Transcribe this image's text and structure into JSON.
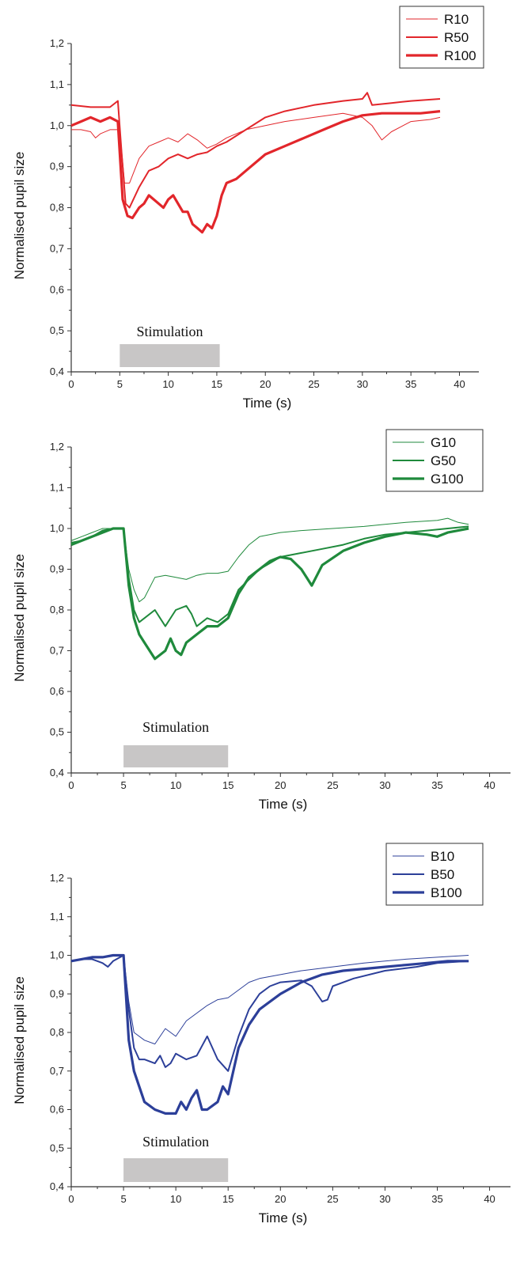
{
  "chart_data": [
    {
      "type": "line",
      "xlabel": "Time (s)",
      "ylabel": "Normalised pupil size",
      "xlim": [
        0,
        42
      ],
      "ylim": [
        0.4,
        1.2
      ],
      "xticks": [
        "0",
        "5",
        "10",
        "15",
        "20",
        "25",
        "30",
        "35",
        "40"
      ],
      "yticks": [
        "0,4",
        "0,5",
        "0,6",
        "0,7",
        "0,8",
        "0,9",
        "1,0",
        "1,1",
        "1,2"
      ],
      "legend_position": "top-right",
      "annotation": {
        "text": "Stimulation",
        "x_start": 5,
        "x_end": 15.3
      },
      "color": "#e2262b",
      "series": [
        {
          "name": "R10",
          "stroke": "thin",
          "x": [
            0,
            1,
            2,
            2.5,
            3,
            4,
            5,
            5.5,
            6,
            7,
            8,
            9,
            10,
            11,
            12,
            13,
            14,
            15,
            16,
            18,
            20,
            22,
            25,
            28,
            30,
            31,
            32,
            33,
            35,
            37,
            38
          ],
          "y": [
            0.99,
            0.99,
            0.985,
            0.97,
            0.98,
            0.99,
            0.99,
            0.86,
            0.86,
            0.92,
            0.95,
            0.96,
            0.97,
            0.96,
            0.98,
            0.965,
            0.945,
            0.955,
            0.97,
            0.99,
            1.0,
            1.01,
            1.02,
            1.03,
            1.02,
            1.0,
            0.965,
            0.985,
            1.01,
            1.015,
            1.02
          ]
        },
        {
          "name": "R50",
          "stroke": "medium",
          "x": [
            0,
            2,
            4,
            4.8,
            5.2,
            5.6,
            6,
            7,
            8,
            9,
            10,
            11,
            12,
            13,
            14,
            15,
            16,
            18,
            20,
            22,
            25,
            28,
            30,
            30.5,
            31,
            33,
            35,
            38
          ],
          "y": [
            1.05,
            1.045,
            1.045,
            1.06,
            0.93,
            0.81,
            0.8,
            0.85,
            0.89,
            0.9,
            0.92,
            0.93,
            0.92,
            0.93,
            0.935,
            0.95,
            0.96,
            0.99,
            1.02,
            1.035,
            1.05,
            1.06,
            1.065,
            1.08,
            1.05,
            1.055,
            1.06,
            1.065
          ]
        },
        {
          "name": "R100",
          "stroke": "thick",
          "x": [
            0,
            1,
            2,
            3,
            4,
            4.8,
            5.3,
            5.8,
            6.3,
            7,
            7.5,
            8,
            9,
            9.5,
            10,
            10.5,
            11,
            11.5,
            12,
            12.5,
            13,
            13.5,
            14,
            14.5,
            15,
            15.5,
            16,
            17,
            18,
            20,
            22,
            24,
            26,
            28,
            30,
            32,
            34,
            36,
            38
          ],
          "y": [
            1.0,
            1.01,
            1.02,
            1.01,
            1.02,
            1.01,
            0.82,
            0.78,
            0.775,
            0.8,
            0.81,
            0.83,
            0.81,
            0.8,
            0.82,
            0.83,
            0.81,
            0.79,
            0.79,
            0.76,
            0.75,
            0.74,
            0.76,
            0.75,
            0.78,
            0.83,
            0.86,
            0.87,
            0.89,
            0.93,
            0.95,
            0.97,
            0.99,
            1.01,
            1.025,
            1.03,
            1.03,
            1.03,
            1.035
          ]
        }
      ]
    },
    {
      "type": "line",
      "xlabel": "Time (s)",
      "ylabel": "Normalised pupil size",
      "xlim": [
        0,
        42
      ],
      "ylim": [
        0.4,
        1.2
      ],
      "xticks": [
        "0",
        "5",
        "10",
        "15",
        "20",
        "25",
        "30",
        "35",
        "40"
      ],
      "yticks": [
        "0,4",
        "0,5",
        "0,6",
        "0,7",
        "0,8",
        "0,9",
        "1,0",
        "1,1",
        "1,2"
      ],
      "legend_position": "top-right",
      "annotation": {
        "text": "Stimulation",
        "x_start": 5,
        "x_end": 15
      },
      "color": "#1f8a3c",
      "series": [
        {
          "name": "G10",
          "stroke": "thin",
          "x": [
            0,
            1,
            2,
            3,
            4,
            5,
            5.5,
            6,
            6.5,
            7,
            8,
            9,
            10,
            11,
            12,
            13,
            14,
            15,
            16,
            17,
            18,
            20,
            22,
            25,
            28,
            30,
            32,
            35,
            36,
            37,
            38
          ],
          "y": [
            0.97,
            0.98,
            0.99,
            1.0,
            1.0,
            1.0,
            0.9,
            0.85,
            0.82,
            0.83,
            0.88,
            0.885,
            0.88,
            0.875,
            0.885,
            0.89,
            0.89,
            0.895,
            0.93,
            0.96,
            0.98,
            0.99,
            0.995,
            1.0,
            1.005,
            1.01,
            1.015,
            1.02,
            1.025,
            1.015,
            1.01
          ]
        },
        {
          "name": "G50",
          "stroke": "medium",
          "x": [
            0,
            1,
            2,
            3,
            4,
            5,
            5.5,
            6,
            6.5,
            7,
            8,
            8.5,
            9,
            10,
            11,
            11.5,
            12,
            13,
            14,
            15,
            16,
            18,
            20,
            22,
            24,
            26,
            28,
            30,
            32,
            34,
            36,
            38
          ],
          "y": [
            0.965,
            0.97,
            0.98,
            0.995,
            1.0,
            1.0,
            0.88,
            0.8,
            0.77,
            0.78,
            0.8,
            0.78,
            0.76,
            0.8,
            0.81,
            0.79,
            0.76,
            0.78,
            0.77,
            0.79,
            0.85,
            0.9,
            0.93,
            0.94,
            0.95,
            0.96,
            0.975,
            0.985,
            0.99,
            0.995,
            1.0,
            1.005
          ]
        },
        {
          "name": "G100",
          "stroke": "thick",
          "x": [
            0,
            1,
            2,
            3,
            4,
            5,
            5.5,
            6,
            6.5,
            7,
            8,
            9,
            9.5,
            10,
            10.5,
            11,
            12,
            13,
            14,
            15,
            16,
            17,
            18,
            19,
            20,
            21,
            22,
            22.5,
            23,
            24,
            26,
            28,
            30,
            32,
            34,
            35,
            36,
            37,
            38
          ],
          "y": [
            0.96,
            0.97,
            0.98,
            0.99,
            1.0,
            1.0,
            0.86,
            0.78,
            0.74,
            0.72,
            0.68,
            0.7,
            0.73,
            0.7,
            0.69,
            0.72,
            0.74,
            0.76,
            0.76,
            0.78,
            0.84,
            0.88,
            0.9,
            0.92,
            0.93,
            0.925,
            0.9,
            0.88,
            0.86,
            0.91,
            0.945,
            0.965,
            0.98,
            0.99,
            0.985,
            0.98,
            0.99,
            0.995,
            1.0
          ]
        }
      ]
    },
    {
      "type": "line",
      "xlabel": "Time (s)",
      "ylabel": "Normalised pupil size",
      "xlim": [
        0,
        42
      ],
      "ylim": [
        0.4,
        1.2
      ],
      "xticks": [
        "0",
        "5",
        "10",
        "15",
        "20",
        "25",
        "30",
        "35",
        "40"
      ],
      "yticks": [
        "0,4",
        "0,5",
        "0,6",
        "0,7",
        "0,8",
        "0,9",
        "1,0",
        "1,1",
        "1,2"
      ],
      "legend_position": "top-right",
      "annotation": {
        "text": "Stimulation",
        "x_start": 5,
        "x_end": 15
      },
      "color": "#2c3f99",
      "series": [
        {
          "name": "B10",
          "stroke": "thin",
          "x": [
            0,
            1,
            2,
            3,
            4,
            5,
            5.5,
            6,
            7,
            8,
            9,
            10,
            11,
            12,
            13,
            14,
            15,
            16,
            17,
            18,
            20,
            22,
            25,
            28,
            30,
            32,
            35,
            38
          ],
          "y": [
            0.985,
            0.99,
            0.995,
            0.995,
            1.0,
            1.0,
            0.88,
            0.8,
            0.78,
            0.77,
            0.81,
            0.79,
            0.83,
            0.85,
            0.87,
            0.885,
            0.89,
            0.91,
            0.93,
            0.94,
            0.95,
            0.96,
            0.97,
            0.98,
            0.985,
            0.99,
            0.995,
            1.0
          ]
        },
        {
          "name": "B50",
          "stroke": "medium",
          "x": [
            0,
            1,
            2,
            3,
            3.5,
            4,
            5,
            5.5,
            6,
            6.5,
            7,
            8,
            8.5,
            9,
            9.5,
            10,
            11,
            12,
            13,
            14,
            15,
            16,
            17,
            18,
            19,
            20,
            22,
            23,
            24,
            24.5,
            25,
            27,
            30,
            33,
            35,
            38
          ],
          "y": [
            0.985,
            0.99,
            0.99,
            0.98,
            0.97,
            0.985,
            1.0,
            0.86,
            0.76,
            0.73,
            0.73,
            0.72,
            0.74,
            0.71,
            0.72,
            0.745,
            0.73,
            0.74,
            0.79,
            0.73,
            0.7,
            0.79,
            0.86,
            0.9,
            0.92,
            0.93,
            0.935,
            0.92,
            0.88,
            0.885,
            0.92,
            0.94,
            0.96,
            0.97,
            0.98,
            0.985
          ]
        },
        {
          "name": "B100",
          "stroke": "thick",
          "x": [
            0,
            1,
            2,
            3,
            4,
            5,
            5.5,
            6,
            6.5,
            7,
            8,
            9,
            10,
            10.5,
            11,
            11.5,
            12,
            12.5,
            13,
            14,
            14.5,
            15,
            16,
            17,
            18,
            20,
            22,
            24,
            26,
            28,
            30,
            32,
            34,
            36,
            38
          ],
          "y": [
            0.985,
            0.99,
            0.995,
            0.995,
            1.0,
            1.0,
            0.78,
            0.7,
            0.66,
            0.62,
            0.6,
            0.59,
            0.59,
            0.62,
            0.6,
            0.63,
            0.65,
            0.6,
            0.6,
            0.62,
            0.66,
            0.64,
            0.76,
            0.82,
            0.86,
            0.9,
            0.93,
            0.95,
            0.96,
            0.965,
            0.97,
            0.975,
            0.98,
            0.985,
            0.985
          ]
        }
      ]
    }
  ]
}
